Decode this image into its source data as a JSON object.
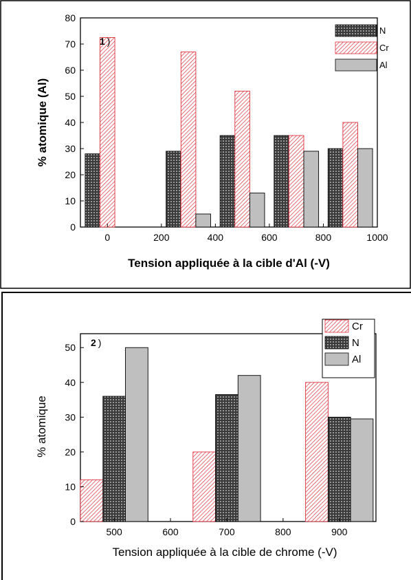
{
  "chart_data": [
    {
      "type": "bar",
      "panel_label": "1",
      "panel_suffix": ")",
      "xlabel": "Tension appliquée à la cible d'Al (-V)",
      "ylabel": "% atomique (Al)",
      "xlim": [
        -100,
        1000
      ],
      "ylim": [
        0,
        80
      ],
      "xticks": [
        0,
        200,
        400,
        600,
        800,
        1000
      ],
      "yticks": [
        0,
        10,
        20,
        30,
        40,
        50,
        60,
        70,
        80
      ],
      "legend_position": "top-right",
      "bar_width": 55,
      "x": [
        0,
        300,
        500,
        700,
        900
      ],
      "series": [
        {
          "name": "N",
          "offset": -55,
          "pattern": "dots",
          "values": [
            28,
            29,
            35,
            35,
            30
          ]
        },
        {
          "name": "Cr",
          "offset": 0,
          "pattern": "hatch",
          "values": [
            72.5,
            67,
            52,
            35,
            40
          ]
        },
        {
          "name": "Al",
          "offset": 55,
          "pattern": "gray",
          "values": [
            0,
            5,
            13,
            29,
            30
          ]
        }
      ]
    },
    {
      "type": "bar",
      "panel_label": "2",
      "panel_suffix": ")",
      "xlabel": "Tension appliquée à la cible de chrome (-V)",
      "ylabel": "% atomique",
      "xlim": [
        440,
        965
      ],
      "ylim": [
        0,
        54
      ],
      "xticks": [
        500,
        600,
        700,
        800,
        900
      ],
      "yticks": [
        0,
        10,
        20,
        30,
        40,
        50
      ],
      "legend_position": "top-right",
      "bar_width": 40,
      "x": [
        500,
        700,
        900
      ],
      "series": [
        {
          "name": "Cr",
          "offset": -40,
          "pattern": "hatch",
          "values": [
            12,
            20,
            40
          ]
        },
        {
          "name": "N",
          "offset": 0,
          "pattern": "dots",
          "values": [
            36,
            36.5,
            30
          ]
        },
        {
          "name": "Al",
          "offset": 40,
          "pattern": "gray",
          "values": [
            50,
            42,
            29.5
          ]
        }
      ]
    }
  ]
}
